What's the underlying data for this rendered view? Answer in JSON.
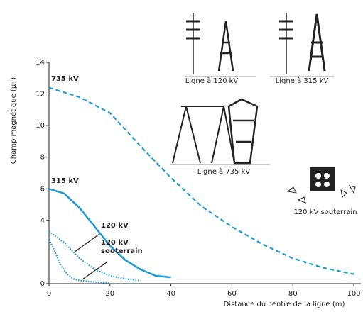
{
  "chart_data": {
    "type": "line",
    "xlabel": "Distance du centre de la ligne (m)",
    "ylabel": "Champ magnétique (µT)",
    "xlim": [
      0,
      100
    ],
    "xticks": [
      0,
      20,
      40,
      60,
      80,
      100
    ],
    "ylim": [
      0,
      14
    ],
    "yticks": [
      0,
      4,
      6,
      8,
      10,
      12,
      14
    ],
    "series": [
      {
        "name": "735 kV",
        "color": "#1e9bd7",
        "style": "dashed",
        "x": [
          0,
          10,
          20,
          30,
          40,
          50,
          60,
          70,
          80,
          90,
          100
        ],
        "values": [
          12.4,
          11.8,
          10.8,
          8.7,
          6.7,
          4.9,
          3.6,
          2.5,
          1.6,
          1.0,
          0.6
        ]
      },
      {
        "name": "315 kV",
        "color": "#1e9bd7",
        "style": "solid",
        "x": [
          0,
          5,
          10,
          15,
          20,
          25,
          30,
          35,
          40
        ],
        "values": [
          6.0,
          5.7,
          4.8,
          3.6,
          2.4,
          1.5,
          0.9,
          0.5,
          0.4
        ]
      },
      {
        "name": "120 kV",
        "color": "#1e9bd7",
        "style": "dotted",
        "x": [
          0,
          5,
          10,
          15,
          20,
          25,
          30
        ],
        "values": [
          3.3,
          2.6,
          1.6,
          0.9,
          0.5,
          0.3,
          0.2
        ]
      },
      {
        "name": "120 kV souterrain",
        "color": "#1e9bd7",
        "style": "dotted",
        "x": [
          0,
          2,
          4,
          6,
          8,
          10,
          15,
          20
        ],
        "values": [
          2.8,
          2.0,
          1.1,
          0.6,
          0.3,
          0.2,
          0.1,
          0.05
        ]
      }
    ],
    "diagram_labels": [
      "Ligne à 120 kV",
      "Ligne à 315 kV",
      "Ligne à 735 kV",
      "120 kV souterrain"
    ]
  }
}
